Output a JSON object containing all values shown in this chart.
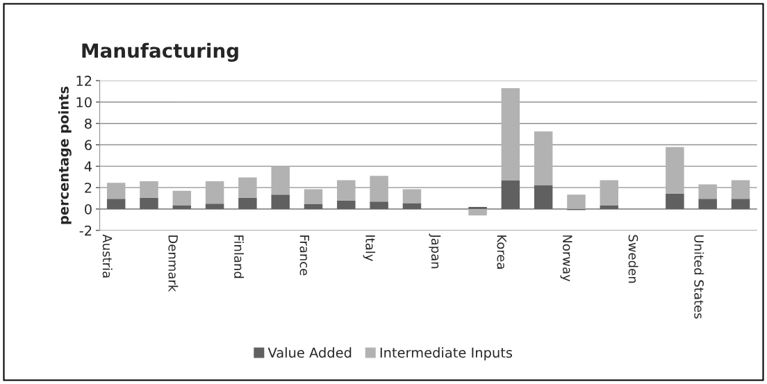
{
  "chart_data": {
    "type": "bar",
    "title": "Manufacturing",
    "ylabel": "percentage points",
    "stacked": true,
    "categories": [
      "Austria",
      null,
      "Denmark",
      null,
      "Finland",
      null,
      "France",
      null,
      "Italy",
      null,
      "Japan",
      null,
      "Korea",
      null,
      "Norway",
      null,
      "Sweden",
      null,
      "United States",
      null
    ],
    "series": [
      {
        "name": "Value Added",
        "color": "#606060",
        "values": [
          0.95,
          1.05,
          0.35,
          0.5,
          1.05,
          1.35,
          0.45,
          0.8,
          0.7,
          0.55,
          null,
          0.2,
          2.7,
          2.2,
          -0.1,
          0.35,
          null,
          1.45,
          0.95,
          0.95
        ]
      },
      {
        "name": "Intermediate Inputs",
        "color": "#b2b2b2",
        "values": [
          1.5,
          1.55,
          1.35,
          2.1,
          1.9,
          2.65,
          1.4,
          1.9,
          2.4,
          1.3,
          null,
          -0.6,
          8.6,
          5.05,
          1.35,
          2.35,
          null,
          4.35,
          1.35,
          1.75
        ]
      }
    ],
    "ylim": [
      -2,
      12
    ],
    "yticks": [
      -2,
      0,
      2,
      4,
      6,
      8,
      10,
      12
    ],
    "grid": "y",
    "legend": "bottom"
  }
}
